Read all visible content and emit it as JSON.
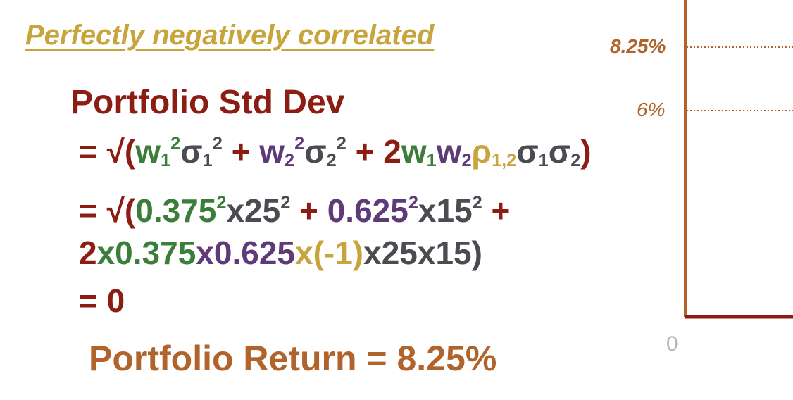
{
  "title": "Perfectly negatively correlated",
  "heading": "Portfolio Std Dev",
  "formula": {
    "eq_sign": "= ",
    "sqrt_open": "√(",
    "w1": "w",
    "sub1": "1",
    "sq": "2",
    "sigma": "σ",
    "plus": " + ",
    "w2": "w",
    "sub2": "2",
    "two": "2",
    "rho": "ρ",
    "rho_sub": "1,2",
    "close": ")"
  },
  "values_line": {
    "eq_sign": "= ",
    "sqrt_open": "√(",
    "w1_val": "0.375",
    "sq": "2",
    "sigma1_part": "x25",
    "plus": " + ",
    "w2_val": "0.625",
    "sigma2_part": "x15",
    "plus_end": " +"
  },
  "values_line2": {
    "two": "2",
    "w1_part": "x0.375",
    "w2_part": "x0.625",
    "rho_part": "x(-1)",
    "tail": "x25x15)"
  },
  "result": "= 0",
  "portfolio_return": "Portfolio Return = 8.25%",
  "axis": {
    "tick_high": "8.25%",
    "tick_low": "6%",
    "origin": "0"
  },
  "colors": {
    "axis": "#b0632b",
    "baseline": "#8b1d13"
  }
}
